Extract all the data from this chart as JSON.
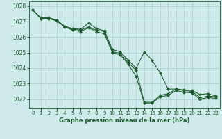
{
  "title": "Graphe pression niveau de la mer (hPa)",
  "bg_color": "#ceeaea",
  "grid_color": "#aacece",
  "line_color": "#1a5c2a",
  "marker_color": "#1a5c2a",
  "xlim": [
    -0.5,
    23.5
  ],
  "ylim": [
    1021.4,
    1028.3
  ],
  "yticks": [
    1022,
    1023,
    1024,
    1025,
    1026,
    1027,
    1028
  ],
  "xticks": [
    0,
    1,
    2,
    3,
    4,
    5,
    6,
    7,
    8,
    9,
    10,
    11,
    12,
    13,
    14,
    15,
    16,
    17,
    18,
    19,
    20,
    21,
    22,
    23
  ],
  "series": [
    [
      1027.75,
      1027.2,
      1027.2,
      1027.05,
      1026.65,
      1026.5,
      1026.45,
      1026.65,
      1026.45,
      1026.35,
      1025.05,
      1024.95,
      1024.35,
      1023.85,
      1021.8,
      1021.8,
      1022.25,
      1022.35,
      1022.65,
      1022.55,
      1022.5,
      1022.1,
      1022.2,
      1022.15
    ],
    [
      1027.75,
      1027.2,
      1027.2,
      1027.05,
      1026.65,
      1026.45,
      1026.35,
      1026.6,
      1026.35,
      1026.2,
      1025.0,
      1024.85,
      1024.25,
      1023.45,
      1021.75,
      1021.75,
      1022.15,
      1022.25,
      1022.55,
      1022.45,
      1022.4,
      1022.0,
      1022.1,
      1022.05
    ],
    [
      1027.75,
      1027.25,
      1027.25,
      1027.1,
      1026.7,
      1026.55,
      1026.5,
      1026.9,
      1026.55,
      1026.4,
      1025.2,
      1025.05,
      1024.5,
      1024.0,
      1025.05,
      1024.5,
      1023.7,
      1022.65,
      1022.65,
      1022.6,
      1022.55,
      1022.3,
      1022.35,
      1022.2
    ]
  ]
}
